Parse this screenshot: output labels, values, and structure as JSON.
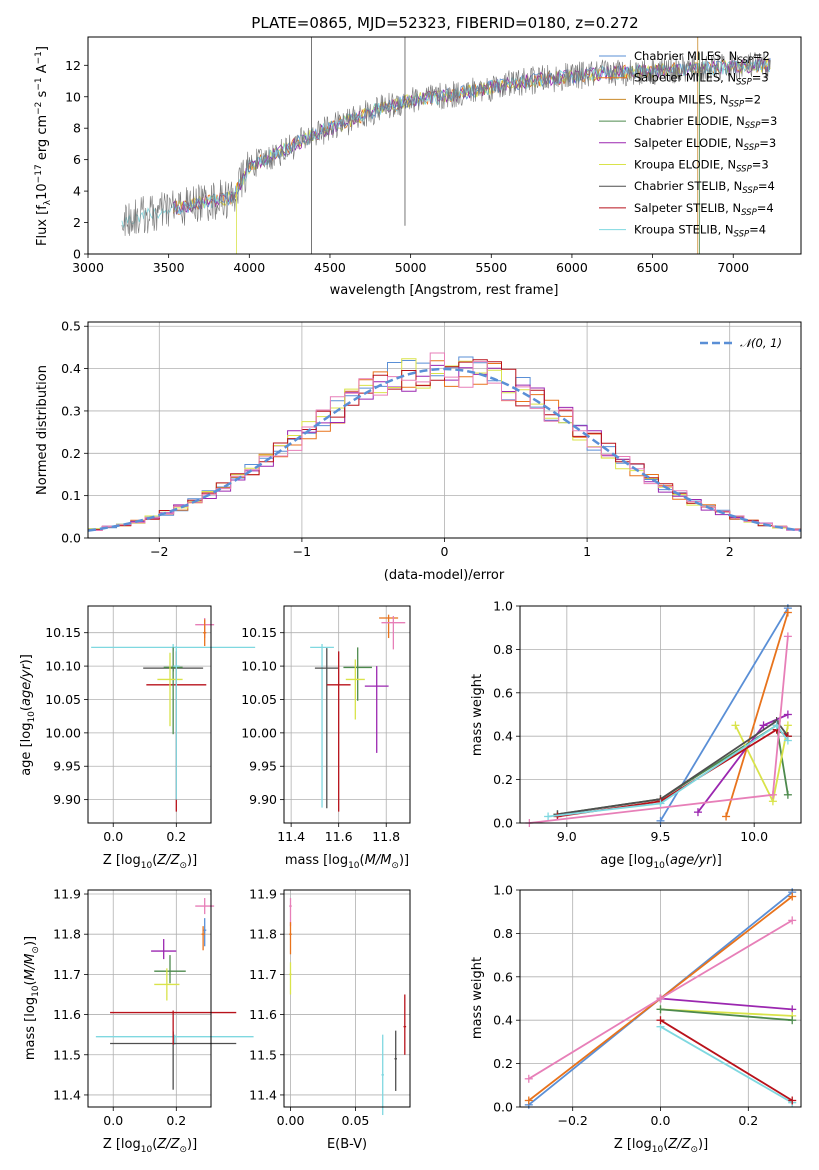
{
  "figure_title": "PLATE=0865, MJD=52323, FIBERID=0180, z=0.272",
  "colors": {
    "Chabrier MILES": "#5a8fd6",
    "Salpeter MILES": "#e8731c",
    "Kroupa MILES": "#c98a2a",
    "Chabrier ELODIE": "#4d8a4d",
    "Salpeter ELODIE": "#9b27b0",
    "Kroupa ELODIE": "#d9e34a",
    "Chabrier STELIB": "#4f4f4f",
    "Salpeter STELIB": "#b8121b",
    "Kroupa STELIB": "#7fd8e0",
    "extra_pink": "#e77fb8",
    "normal": "#5a8fd6"
  },
  "chart_data": [
    {
      "panel": "spectrum",
      "type": "line",
      "title": "PLATE=0865, MJD=52323, FIBERID=0180, z=0.272",
      "xlabel": "wavelength [Angstrom, rest frame]",
      "ylabel": "Flux [f_λ 10^-17 erg cm^-2 s^-1 A^-1]",
      "xlim": [
        3000,
        7420
      ],
      "ylim": [
        0,
        13.8
      ],
      "xticks": [
        3000,
        3500,
        4000,
        4500,
        5000,
        5500,
        6000,
        6500,
        7000
      ],
      "yticks": [
        0,
        2,
        4,
        6,
        8,
        10,
        12
      ],
      "continuum": {
        "x": [
          3210,
          3300,
          3450,
          3500,
          3600,
          3700,
          3800,
          3900,
          4000,
          4200,
          4400,
          4600,
          4800,
          5000,
          5200,
          5400,
          5600,
          5800,
          6000,
          6200,
          6400,
          6600,
          6800,
          7000,
          7200
        ],
        "y": [
          2.1,
          2.4,
          2.6,
          2.9,
          3.0,
          3.3,
          3.4,
          3.6,
          5.6,
          6.5,
          7.6,
          8.4,
          9.2,
          9.8,
          10.0,
          10.4,
          10.8,
          11.1,
          11.3,
          11.5,
          11.6,
          11.7,
          11.8,
          11.9,
          12.0
        ]
      },
      "legend_entries": [
        {
          "label": "Chabrier MILES, N",
          "sub": "SSP",
          "tail": "=2"
        },
        {
          "label": "Salpeter MILES, N",
          "sub": "SSP",
          "tail": "=3"
        },
        {
          "label": "Kroupa MILES, N",
          "sub": "SSP",
          "tail": "=2"
        },
        {
          "label": "Chabrier ELODIE, N",
          "sub": "SSP",
          "tail": "=3"
        },
        {
          "label": "Salpeter ELODIE, N",
          "sub": "SSP",
          "tail": "=3"
        },
        {
          "label": "Kroupa ELODIE, N",
          "sub": "SSP",
          "tail": "=3"
        },
        {
          "label": "Chabrier STELIB, N",
          "sub": "SSP",
          "tail": "=4"
        },
        {
          "label": "Salpeter STELIB, N",
          "sub": "SSP",
          "tail": "=4"
        },
        {
          "label": "Kroupa STELIB, N",
          "sub": "SSP",
          "tail": "=4"
        }
      ],
      "legend_placement": "right"
    },
    {
      "panel": "residuals",
      "type": "line",
      "xlabel": "(data-model)/error",
      "ylabel": "Normed distribution",
      "xlim": [
        -2.5,
        2.5
      ],
      "ylim": [
        0,
        0.51
      ],
      "xticks": [
        -2,
        -1,
        0,
        1,
        2
      ],
      "yticks": [
        0.0,
        0.1,
        0.2,
        0.3,
        0.4,
        0.5
      ],
      "legend": "𝒩(0, 1)",
      "legend_placement": "top-right",
      "grid": true
    },
    {
      "panel": "age_vs_Z",
      "type": "scatter",
      "xlabel": "Z [log10(Z/Z⊙)]",
      "ylabel": "age [log10(age/yr)]",
      "xlim": [
        -0.08,
        0.31
      ],
      "ylim": [
        9.865,
        10.19
      ],
      "xticks": [
        0.0,
        0.2
      ],
      "yticks": [
        9.9,
        9.95,
        10.0,
        10.05,
        10.1,
        10.15
      ]
    },
    {
      "panel": "age_vs_mass",
      "type": "scatter",
      "xlabel": "mass [log10(M/M⊙)]",
      "xlim": [
        11.37,
        11.9
      ],
      "ylim": [
        9.865,
        10.19
      ],
      "xticks": [
        11.4,
        11.6,
        11.8
      ],
      "yticks": [
        9.9,
        9.95,
        10.0,
        10.05,
        10.1,
        10.15
      ]
    },
    {
      "panel": "weight_vs_age",
      "type": "line",
      "xlabel": "age [log10(age/yr)]",
      "ylabel": "mass weight",
      "xlim": [
        8.75,
        10.25
      ],
      "ylim": [
        0,
        1.0
      ],
      "xticks": [
        9.0,
        9.5,
        10.0
      ],
      "yticks": [
        0.0,
        0.2,
        0.4,
        0.6,
        0.8,
        1.0
      ],
      "series": [
        {
          "name": "Chabrier MILES",
          "x": [
            9.5,
            10.18
          ],
          "y": [
            0.01,
            0.99
          ]
        },
        {
          "name": "Salpeter MILES",
          "x": [
            9.85,
            10.18
          ],
          "y": [
            0.03,
            0.97
          ]
        },
        {
          "name": "Chabrier ELODIE",
          "x": [
            8.95,
            9.5,
            10.12,
            10.18
          ],
          "y": [
            0.04,
            0.11,
            0.45,
            0.13
          ]
        },
        {
          "name": "Salpeter ELODIE",
          "x": [
            9.7,
            10.05,
            10.18
          ],
          "y": [
            0.05,
            0.45,
            0.5
          ]
        },
        {
          "name": "Kroupa ELODIE",
          "x": [
            9.9,
            10.1,
            10.18
          ],
          "y": [
            0.45,
            0.1,
            0.45
          ]
        },
        {
          "name": "Chabrier STELIB",
          "x": [
            8.95,
            9.5,
            10.12,
            10.18
          ],
          "y": [
            0.04,
            0.11,
            0.47,
            0.4
          ]
        },
        {
          "name": "Salpeter STELIB",
          "x": [
            8.95,
            9.5,
            10.12,
            10.18
          ],
          "y": [
            0.03,
            0.1,
            0.43,
            0.4
          ]
        },
        {
          "name": "Kroupa STELIB",
          "x": [
            8.9,
            9.5,
            10.12,
            10.18
          ],
          "y": [
            0.03,
            0.09,
            0.45,
            0.38
          ]
        },
        {
          "name": "pink",
          "x": [
            8.8,
            10.1,
            10.18
          ],
          "y": [
            0.0,
            0.13,
            0.86
          ]
        }
      ]
    },
    {
      "panel": "mass_vs_Z",
      "type": "scatter",
      "xlabel": "Z [log10(Z/Z⊙)]",
      "ylabel": "mass [log10(M/M⊙)]",
      "xlim": [
        -0.08,
        0.31
      ],
      "ylim": [
        11.37,
        11.91
      ],
      "xticks": [
        0.0,
        0.2
      ],
      "yticks": [
        11.4,
        11.5,
        11.6,
        11.7,
        11.8,
        11.9
      ]
    },
    {
      "panel": "mass_vs_EBV",
      "type": "scatter",
      "xlabel": "E(B-V)",
      "xlim": [
        -0.005,
        0.092
      ],
      "ylim": [
        11.37,
        11.91
      ],
      "xticks": [
        0.0,
        0.05
      ],
      "yticks": [
        11.4,
        11.5,
        11.6,
        11.7,
        11.8,
        11.9
      ]
    },
    {
      "panel": "weight_vs_Z",
      "type": "line",
      "xlabel": "Z [log10(Z/Z⊙)]",
      "ylabel": "mass weight",
      "xlim": [
        -0.32,
        0.32
      ],
      "ylim": [
        0,
        1.0
      ],
      "xticks": [
        -0.2,
        0.0,
        0.2
      ],
      "yticks": [
        0.0,
        0.2,
        0.4,
        0.6,
        0.8,
        1.0
      ],
      "series": [
        {
          "name": "Chabrier MILES",
          "x": [
            -0.3,
            0.0,
            0.3
          ],
          "y": [
            0.01,
            0.5,
            0.99
          ]
        },
        {
          "name": "Salpeter MILES",
          "x": [
            -0.3,
            0.0,
            0.3
          ],
          "y": [
            0.03,
            0.5,
            0.97
          ]
        },
        {
          "name": "Salpeter ELODIE",
          "x": [
            0.0,
            0.3
          ],
          "y": [
            0.5,
            0.45
          ]
        },
        {
          "name": "Kroupa ELODIE",
          "x": [
            0.0,
            0.3
          ],
          "y": [
            0.45,
            0.42
          ]
        },
        {
          "name": "Chabrier ELODIE",
          "x": [
            0.0,
            0.3
          ],
          "y": [
            0.45,
            0.4
          ]
        },
        {
          "name": "Kroupa STELIB",
          "x": [
            0.0,
            0.3
          ],
          "y": [
            0.37,
            0.02
          ]
        },
        {
          "name": "Salpeter STELIB",
          "x": [
            0.0,
            0.3
          ],
          "y": [
            0.4,
            0.03
          ]
        },
        {
          "name": "pink",
          "x": [
            -0.3,
            0.0,
            0.3
          ],
          "y": [
            0.13,
            0.5,
            0.86
          ]
        }
      ]
    }
  ]
}
